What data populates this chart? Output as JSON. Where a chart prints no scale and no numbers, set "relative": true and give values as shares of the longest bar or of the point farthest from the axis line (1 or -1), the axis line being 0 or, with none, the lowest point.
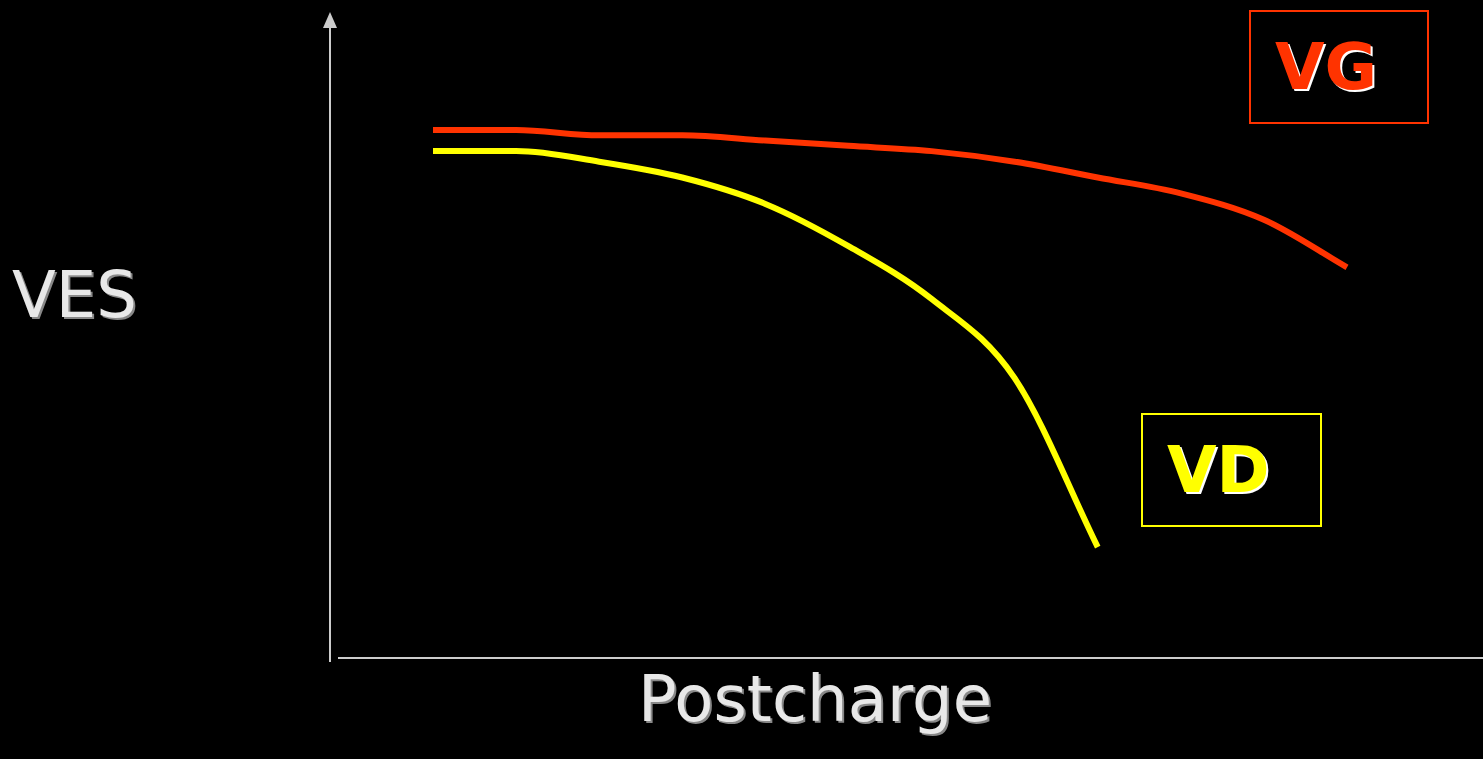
{
  "chart_data": {
    "type": "line",
    "xlabel": "Postcharge",
    "ylabel": "VES",
    "relative": true,
    "marker": "none",
    "line_style": "solid",
    "legend": false,
    "categories": [
      null,
      null,
      null,
      null,
      null,
      null,
      null,
      null,
      null,
      null,
      null,
      null
    ],
    "series": [
      {
        "name": "VG",
        "color": "#ff3300",
        "values": [
          1,
          1,
          0.99,
          0.99,
          0.98,
          0.97,
          0.96,
          0.94,
          0.91,
          0.88,
          0.83,
          0.74
        ]
      },
      {
        "name": "VD",
        "color": "#ffff00",
        "values": [
          0.96,
          0.96,
          0.94,
          0.91,
          0.86,
          0.78,
          0.68,
          0.53,
          0.21,
          null,
          null,
          null
        ]
      }
    ]
  }
}
